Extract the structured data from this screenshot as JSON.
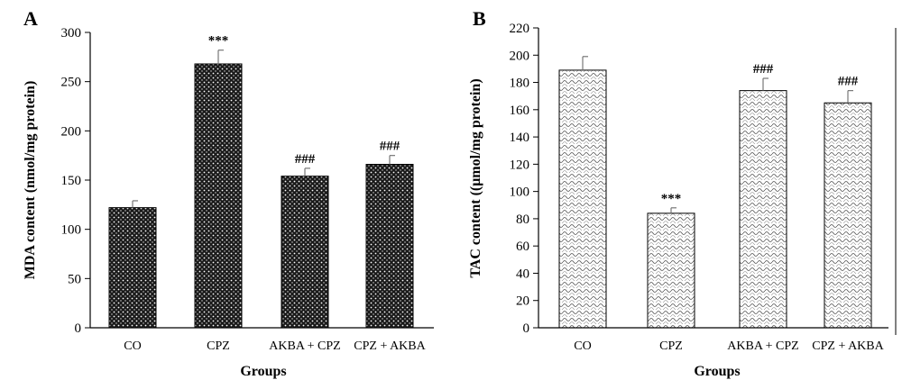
{
  "chart_data": [
    {
      "type": "bar",
      "panel_label": "A",
      "categories": [
        "CO",
        "CPZ",
        "AKBA + CPZ",
        "CPZ + AKBA"
      ],
      "values": [
        122,
        268,
        154,
        166
      ],
      "errors": [
        7,
        14,
        8,
        9
      ],
      "annotations": [
        "",
        "***",
        "###",
        "###"
      ],
      "xlabel": "Groups",
      "ylabel": "MDA content (nmol/mg protein)",
      "ylim": [
        0,
        300
      ],
      "yticks": [
        0,
        50,
        100,
        150,
        200,
        250,
        300
      ],
      "grid": false,
      "legend": "none",
      "bar_pattern": "dark-dots",
      "bar_color": "#1a1a1a"
    },
    {
      "type": "bar",
      "panel_label": "B",
      "categories": [
        "CO",
        "CPZ",
        "AKBA + CPZ",
        "CPZ + AKBA"
      ],
      "values": [
        189,
        84,
        174,
        165
      ],
      "errors": [
        10,
        4,
        9,
        9
      ],
      "annotations": [
        "",
        "***",
        "###",
        "###"
      ],
      "xlabel": "Groups",
      "ylabel": "TAC content ((μmol/mg protein)",
      "ylim": [
        0,
        220
      ],
      "yticks": [
        0,
        20,
        40,
        60,
        80,
        100,
        120,
        140,
        160,
        180,
        200,
        220
      ],
      "grid": false,
      "legend": "none",
      "bar_pattern": "light-hatch",
      "bar_color": "#ffffff"
    }
  ]
}
